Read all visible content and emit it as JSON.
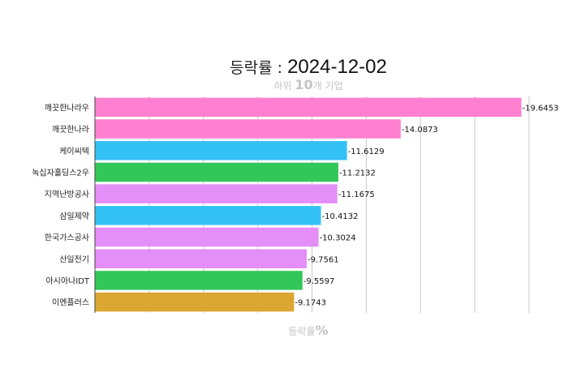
{
  "chart_data": {
    "type": "bar",
    "orientation": "horizontal",
    "title": {
      "prefix": "등락률 : ",
      "date": "2024-12-02"
    },
    "subtitle": {
      "before": "하위 ",
      "number": "10",
      "after": "개 기업"
    },
    "xlabel": {
      "text": "등락률",
      "unit": "%"
    },
    "xlim": [
      0,
      20
    ],
    "grid": true,
    "legend": "none",
    "categories": [
      "깨끗한나라우",
      "깨끗한나라",
      "케이씨텍",
      "녹십자홀딩스2우",
      "지역난방공사",
      "삼일제약",
      "한국가스공사",
      "산일전기",
      "아시아나IDT",
      "이엔플러스"
    ],
    "values": [
      -19.6453,
      -14.0873,
      -11.6129,
      -11.2132,
      -11.1675,
      -10.4132,
      -10.3024,
      -9.7561,
      -9.5597,
      -9.1743
    ],
    "value_labels": [
      "-19.6453",
      "-14.0873",
      "-11.6129",
      "-11.2132",
      "-11.1675",
      "-10.4132",
      "-10.3024",
      "-9.7561",
      "-9.5597",
      "-9.1743"
    ],
    "colors": [
      "#ff80d0",
      "#ff80d0",
      "#33c1f5",
      "#33c659",
      "#e48ef8",
      "#33c1f5",
      "#e48ef8",
      "#e48ef8",
      "#33c659",
      "#dca632"
    ]
  }
}
